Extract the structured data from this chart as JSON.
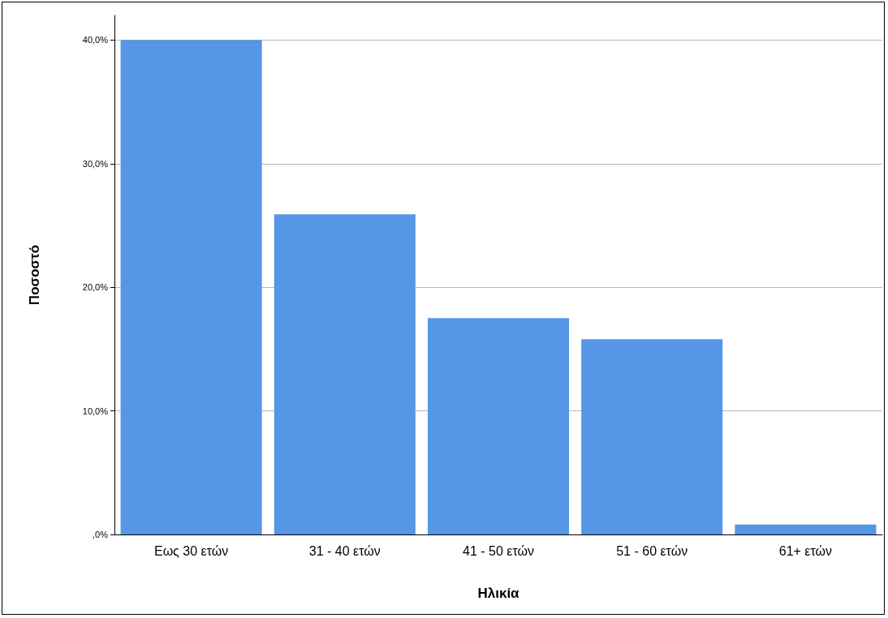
{
  "chart_data": {
    "type": "bar",
    "xlabel": "Ηλικία",
    "ylabel": "Ποσοστό",
    "categories": [
      "Εως 30 ετών",
      "31 - 40 ετών",
      "41 - 50 ετών",
      "51 - 60 ετών",
      "61+ ετών"
    ],
    "values": [
      40.0,
      25.9,
      17.5,
      15.8,
      0.8
    ],
    "color": "#5596e6",
    "ylim": [
      0,
      42
    ],
    "yticks": [
      {
        "value": 0,
        "label": ",0%"
      },
      {
        "value": 10,
        "label": "10,0%"
      },
      {
        "value": 20,
        "label": "20,0%"
      },
      {
        "value": 30,
        "label": "30,0%"
      },
      {
        "value": 40,
        "label": "40,0%"
      }
    ],
    "grid": "y"
  }
}
